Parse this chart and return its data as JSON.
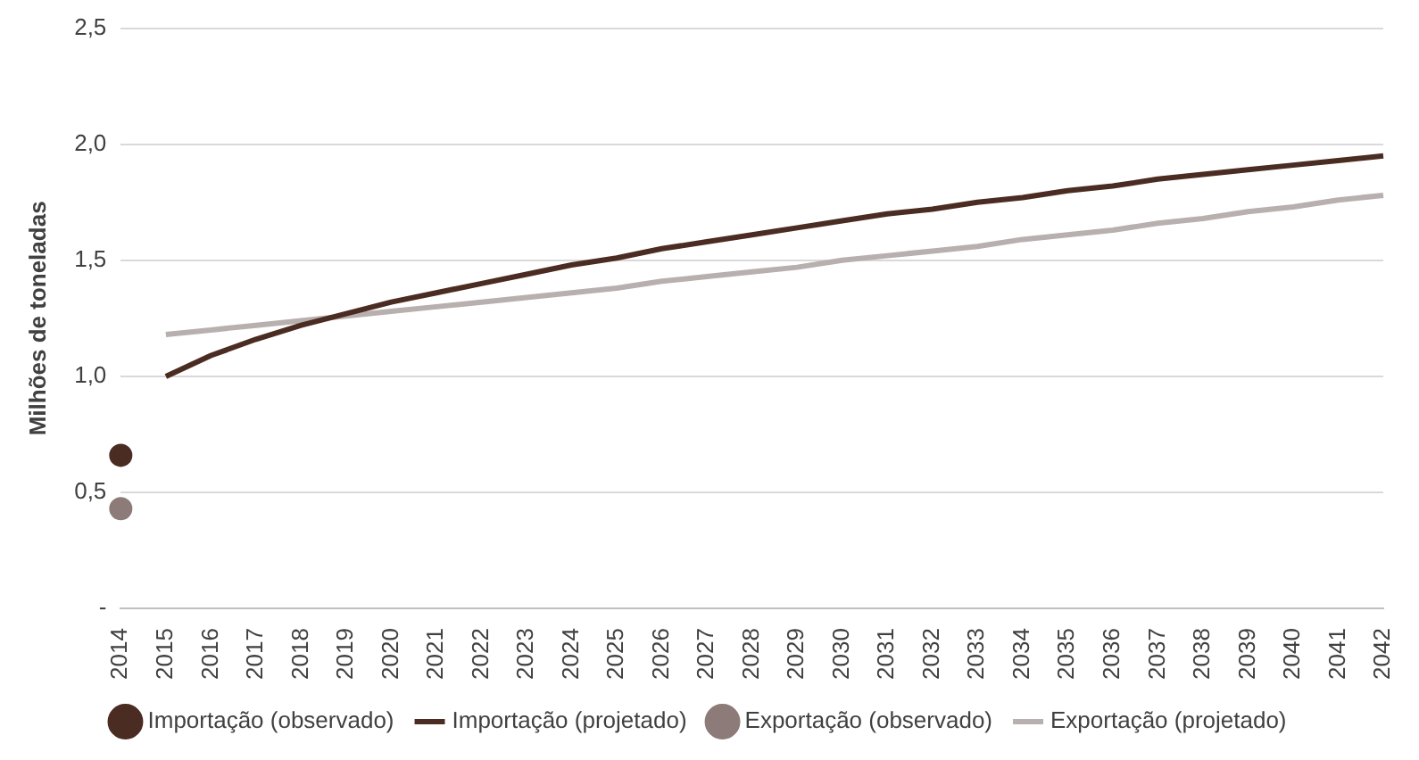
{
  "chart_data": {
    "type": "line",
    "ylabel": "Milhões de toneladas",
    "categories": [
      "2014",
      "2015",
      "2016",
      "2017",
      "2018",
      "2019",
      "2020",
      "2021",
      "2022",
      "2023",
      "2024",
      "2025",
      "2026",
      "2027",
      "2028",
      "2029",
      "2030",
      "2031",
      "2032",
      "2033",
      "2034",
      "2035",
      "2036",
      "2037",
      "2038",
      "2039",
      "2040",
      "2041",
      "2042"
    ],
    "series": [
      {
        "name": "Importação (observado)",
        "type": "scatter",
        "marker": "circle",
        "color": "#4a2c22",
        "values": [
          0.66,
          null,
          null,
          null,
          null,
          null,
          null,
          null,
          null,
          null,
          null,
          null,
          null,
          null,
          null,
          null,
          null,
          null,
          null,
          null,
          null,
          null,
          null,
          null,
          null,
          null,
          null,
          null,
          null
        ]
      },
      {
        "name": "Importação (projetado)",
        "type": "line",
        "color": "#4a2c22",
        "values": [
          null,
          1.0,
          1.09,
          1.16,
          1.22,
          1.27,
          1.32,
          1.36,
          1.4,
          1.44,
          1.48,
          1.51,
          1.55,
          1.58,
          1.61,
          1.64,
          1.67,
          1.7,
          1.72,
          1.75,
          1.77,
          1.8,
          1.82,
          1.85,
          1.87,
          1.89,
          1.91,
          1.93,
          1.95
        ]
      },
      {
        "name": "Exportação (observado)",
        "type": "scatter",
        "marker": "circle",
        "color": "#8c7b78",
        "values": [
          0.43,
          null,
          null,
          null,
          null,
          null,
          null,
          null,
          null,
          null,
          null,
          null,
          null,
          null,
          null,
          null,
          null,
          null,
          null,
          null,
          null,
          null,
          null,
          null,
          null,
          null,
          null,
          null,
          null
        ]
      },
      {
        "name": "Exportação (projetado)",
        "type": "line",
        "color": "#b8b0ae",
        "values": [
          null,
          1.18,
          1.2,
          1.22,
          1.24,
          1.26,
          1.28,
          1.3,
          1.32,
          1.34,
          1.36,
          1.38,
          1.41,
          1.43,
          1.45,
          1.47,
          1.5,
          1.52,
          1.54,
          1.56,
          1.59,
          1.61,
          1.63,
          1.66,
          1.68,
          1.71,
          1.73,
          1.76,
          1.78
        ]
      }
    ],
    "ylim": [
      0,
      2.5
    ],
    "yticks": [
      {
        "value": 0,
        "label": "-"
      },
      {
        "value": 0.5,
        "label": "0,5"
      },
      {
        "value": 1,
        "label": "1,0"
      },
      {
        "value": 1.5,
        "label": "1,5"
      },
      {
        "value": 2,
        "label": "2,0"
      },
      {
        "value": 2.5,
        "label": "2,5"
      }
    ],
    "grid": "y",
    "legend": "bottom",
    "line_style": "solid"
  }
}
